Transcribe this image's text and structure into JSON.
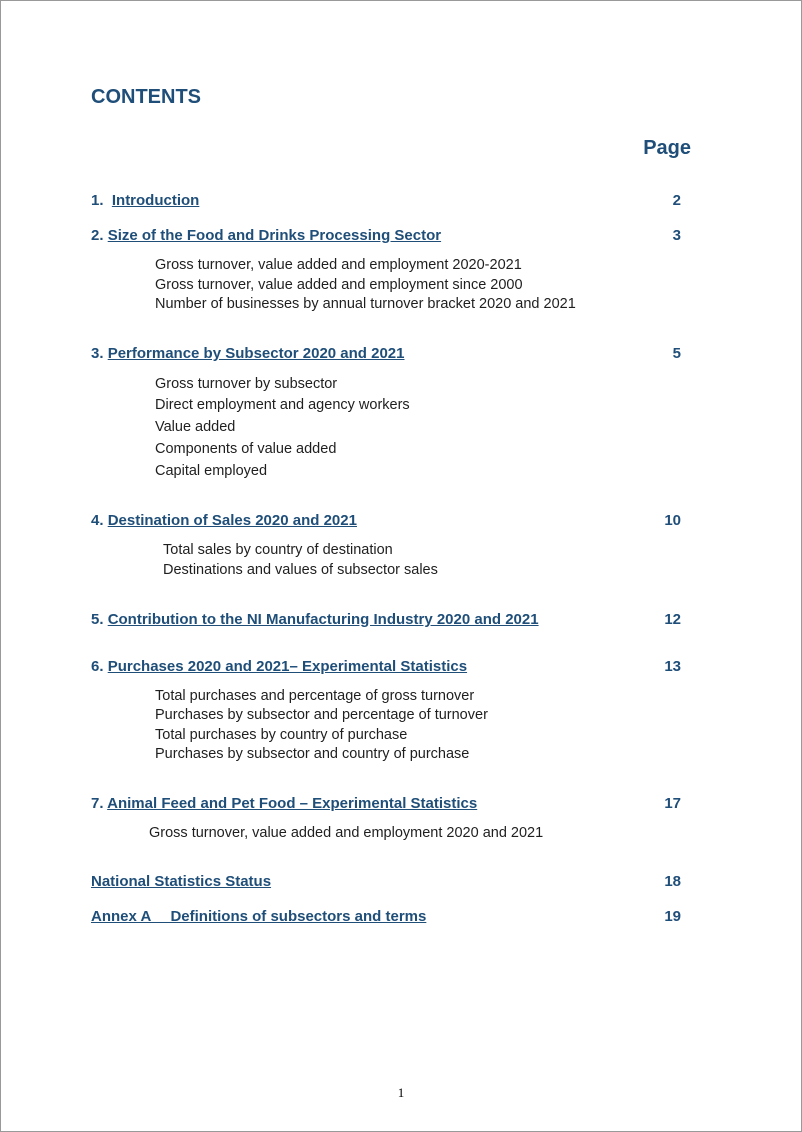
{
  "title": "CONTENTS",
  "page_header": "Page",
  "page_number": "1",
  "colors": {
    "heading": "#1f4e79",
    "body": "#1f1f1f",
    "background": "#ffffff"
  },
  "typography": {
    "title_fontsize": 20,
    "entry_fontsize": 15,
    "subitem_fontsize": 14.5,
    "font_family": "Arial"
  },
  "entries": [
    {
      "number": "1.",
      "title": "Introduction",
      "page": "2",
      "subitems": []
    },
    {
      "number": "2.",
      "title": "Size of the Food and Drinks Processing Sector",
      "page": "3",
      "subitems": [
        "Gross turnover, value added and employment 2020-2021",
        "Gross turnover, value added and employment since 2000",
        "Number of businesses by annual turnover bracket 2020 and 2021"
      ]
    },
    {
      "number": "3.",
      "title": "Performance by Subsector 2020 and 2021",
      "page": "5",
      "subitems": [
        "Gross turnover by subsector",
        "Direct employment and agency workers",
        "Value added",
        "Components of value added",
        "Capital employed"
      ]
    },
    {
      "number": "4.",
      "title": "Destination of Sales 2020 and 2021",
      "page": "10",
      "subitems": [
        "Total sales by country of destination",
        "Destinations and values of subsector sales"
      ]
    },
    {
      "number": "5.",
      "title": "Contribution to the NI Manufacturing Industry 2020 and 2021",
      "page": "12",
      "subitems": []
    },
    {
      "number": "6.",
      "title": "Purchases 2020 and 2021– Experimental Statistics",
      "page": "13",
      "subitems": [
        "Total purchases and percentage of gross turnover",
        "Purchases by subsector and percentage of turnover",
        "Total purchases by country of purchase",
        "Purchases by subsector and country of purchase"
      ]
    },
    {
      "number": "7.",
      "title": "Animal Feed and Pet Food – Experimental Statistics",
      "page": "17",
      "subitems": [
        "Gross turnover, value added and employment 2020 and 2021"
      ]
    },
    {
      "number": "",
      "title": "National Statistics Status",
      "page": "18",
      "subitems": []
    },
    {
      "number": "",
      "title": "Annex A  Definitions of subsectors and terms",
      "page": "19",
      "subitems": []
    }
  ]
}
